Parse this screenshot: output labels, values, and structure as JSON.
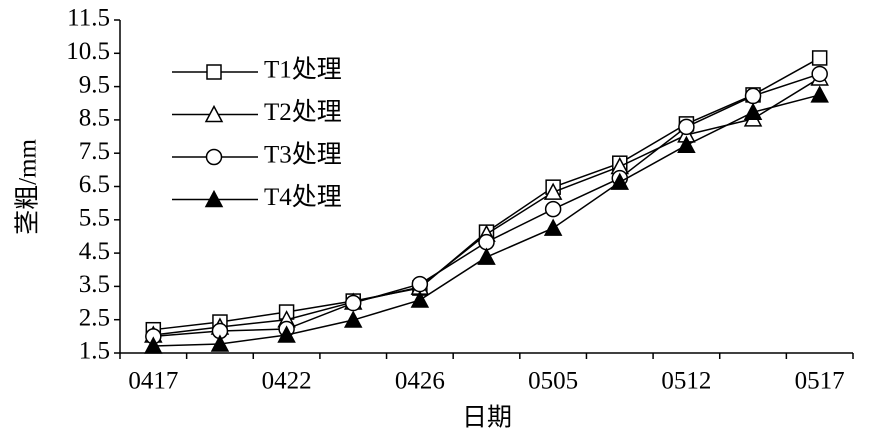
{
  "chart_data": {
    "type": "line",
    "xlabel": "日期",
    "ylabel": "茎粗/mm",
    "categories": [
      "0417",
      null,
      "0422",
      null,
      "0426",
      null,
      "0505",
      null,
      "0512",
      null,
      "0517"
    ],
    "series": [
      {
        "name": "T1处理",
        "color": "#000000",
        "marker": "square",
        "values": [
          2.2,
          2.43,
          2.73,
          3.06,
          3.45,
          5.13,
          6.48,
          7.2,
          8.38,
          9.25,
          10.36
        ]
      },
      {
        "name": "T2处理",
        "color": "#000000",
        "marker": "triangle",
        "values": [
          2.04,
          2.28,
          2.5,
          3.03,
          3.48,
          5.07,
          6.33,
          7.1,
          8.05,
          8.53,
          9.76
        ]
      },
      {
        "name": "T3处理",
        "color": "#000000",
        "marker": "circle",
        "values": [
          2.0,
          2.16,
          2.22,
          3.0,
          3.57,
          4.83,
          5.82,
          6.75,
          8.29,
          9.22,
          9.88
        ]
      },
      {
        "name": "T4处理",
        "color": "#000000",
        "marker": "triangle-filled",
        "values": [
          1.71,
          1.77,
          2.04,
          2.49,
          3.09,
          4.38,
          5.25,
          6.63,
          7.74,
          8.73,
          9.25
        ]
      }
    ],
    "ylim": [
      1.5,
      11.5
    ],
    "yticks": [
      1.5,
      2.5,
      3.5,
      4.5,
      5.5,
      6.5,
      7.5,
      8.5,
      9.5,
      10.5,
      11.5
    ],
    "grid": false,
    "legend": "upper-left"
  }
}
